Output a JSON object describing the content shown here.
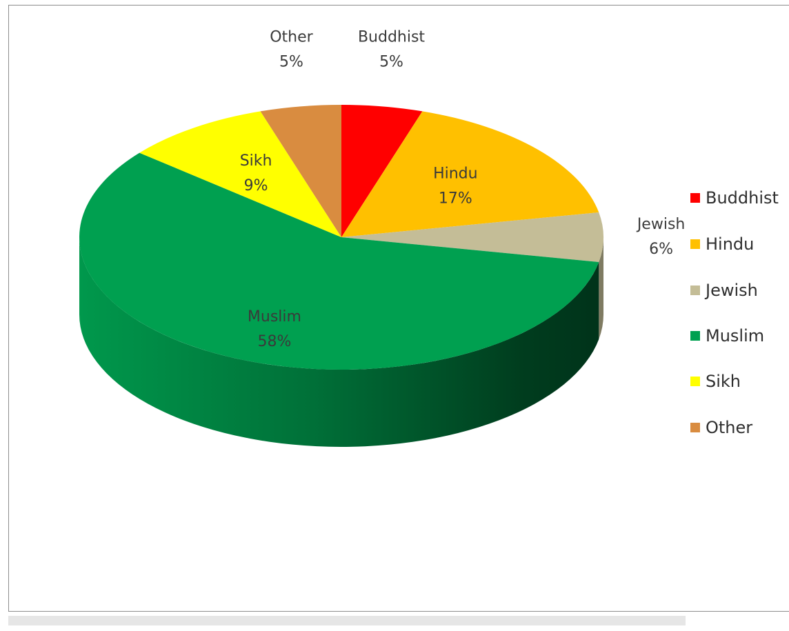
{
  "chart_data": {
    "type": "pie",
    "title": "",
    "slices": [
      {
        "label": "Buddhist",
        "value": 5,
        "pct_label": "5%",
        "color": "#ff0000"
      },
      {
        "label": "Hindu",
        "value": 17,
        "pct_label": "17%",
        "color": "#ffc000"
      },
      {
        "label": "Jewish",
        "value": 6,
        "pct_label": "6%",
        "color": "#c4bd97"
      },
      {
        "label": "Muslim",
        "value": 58,
        "pct_label": "58%",
        "color": "#00a050"
      },
      {
        "label": "Sikh",
        "value": 9,
        "pct_label": "9%",
        "color": "#ffff00"
      },
      {
        "label": "Other",
        "value": 5,
        "pct_label": "5%",
        "color": "#d98c40"
      }
    ],
    "style": "3d",
    "legend_position": "right"
  },
  "legend": {
    "items": [
      {
        "label": "Buddhist",
        "color": "#ff0000"
      },
      {
        "label": "Hindu",
        "color": "#ffc000"
      },
      {
        "label": "Jewish",
        "color": "#c4bd97"
      },
      {
        "label": "Muslim",
        "color": "#00a050"
      },
      {
        "label": "Sikh",
        "color": "#ffff00"
      },
      {
        "label": "Other",
        "color": "#d98c40"
      }
    ]
  }
}
